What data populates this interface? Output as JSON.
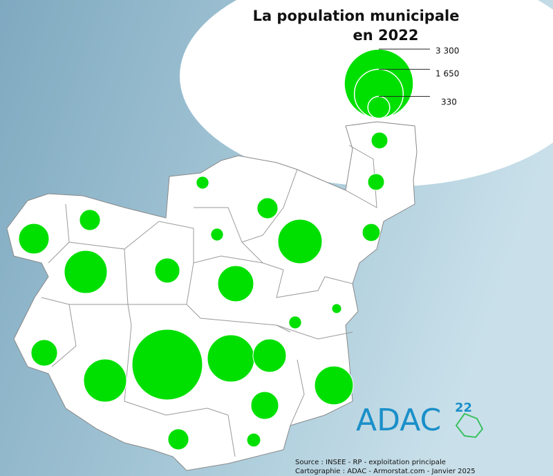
{
  "title_lines": [
    "La population municipale",
    "en 2022"
  ],
  "legend": {
    "items": [
      {
        "value": 3300,
        "label": "3 300"
      },
      {
        "value": 1650,
        "label": "1 650"
      },
      {
        "value": 330,
        "label": "330"
      }
    ]
  },
  "circle_color": "#00e000",
  "communes": {
    "values": [
      190,
      190,
      110,
      300,
      300,
      640,
      110,
      1350,
      220,
      1270,
      430,
      890,
      65,
      110,
      480,
      1270,
      3430,
      1530,
      760,
      1030,
      530,
      300,
      130
    ]
  },
  "logo": {
    "text": "ADAC",
    "number": "22"
  },
  "source_lines": [
    "Source : INSEE - RP - exploitation principale",
    "Cartographie : ADAC - Armorstat.com - Janvier 2025"
  ]
}
